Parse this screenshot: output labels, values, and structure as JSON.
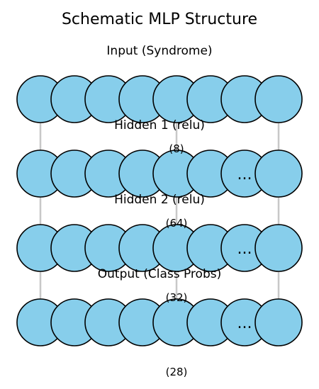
{
  "title": "Schematic MLP Structure",
  "node_color": "#87ceeb",
  "connector_color": "#c8c8c8",
  "layers": [
    {
      "label": "Input (Syndrome)",
      "count": "",
      "ellipsis": ""
    },
    {
      "label": "Hidden 1 (relu)",
      "count": "(8)",
      "ellipsis": "..."
    },
    {
      "label": "Hidden 2 (relu)",
      "count": "(64)",
      "ellipsis": "..."
    },
    {
      "label": "Output (Class Probs)",
      "count": "(32)",
      "ellipsis": "..."
    }
  ],
  "final_count": "(28)"
}
